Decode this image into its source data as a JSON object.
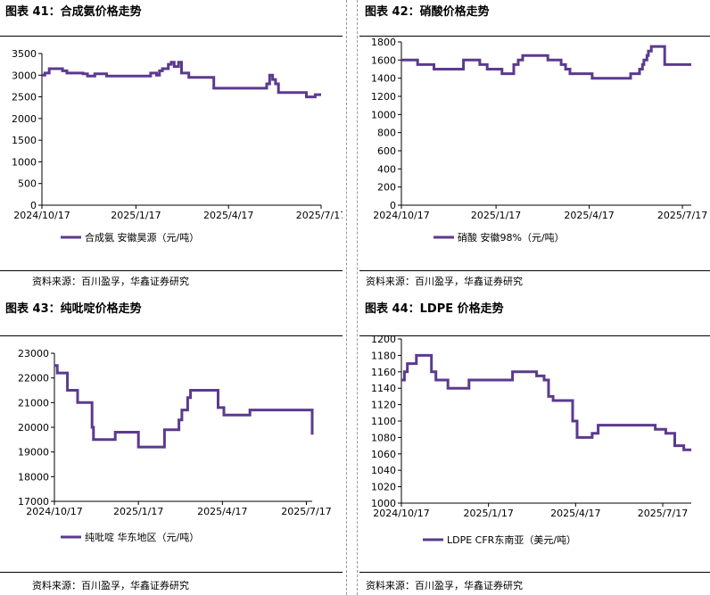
{
  "source_label": "资料来源：百川盈孚，华鑫证券研究",
  "colors": {
    "line": "#5b3a8e",
    "axis": "#000000"
  },
  "panels": [
    {
      "title": "图表 41：合成氨价格走势",
      "chart_data": {
        "type": "line",
        "series": [
          {
            "name": "合成氨 安徽昊源（元/吨）",
            "points": [
              [
                0,
                3000
              ],
              [
                2,
                3000
              ],
              [
                2,
                3050
              ],
              [
                5,
                3050
              ],
              [
                5,
                3150
              ],
              [
                14,
                3150
              ],
              [
                14,
                3100
              ],
              [
                17,
                3100
              ],
              [
                17,
                3050
              ],
              [
                28,
                3050
              ],
              [
                28,
                3030
              ],
              [
                31,
                3030
              ],
              [
                31,
                2980
              ],
              [
                36,
                2980
              ],
              [
                36,
                3030
              ],
              [
                44,
                3030
              ],
              [
                44,
                2980
              ],
              [
                74,
                2980
              ],
              [
                74,
                3050
              ],
              [
                78,
                3050
              ],
              [
                78,
                3000
              ],
              [
                80,
                3000
              ],
              [
                80,
                3100
              ],
              [
                82,
                3100
              ],
              [
                82,
                3150
              ],
              [
                86,
                3150
              ],
              [
                86,
                3250
              ],
              [
                88,
                3250
              ],
              [
                88,
                3300
              ],
              [
                90,
                3300
              ],
              [
                90,
                3200
              ],
              [
                93,
                3200
              ],
              [
                93,
                3300
              ],
              [
                95,
                3300
              ],
              [
                95,
                3050
              ],
              [
                100,
                3050
              ],
              [
                100,
                2950
              ],
              [
                117,
                2950
              ],
              [
                117,
                2700
              ],
              [
                153,
                2700
              ],
              [
                153,
                2800
              ],
              [
                155,
                2800
              ],
              [
                155,
                3000
              ],
              [
                157,
                3000
              ],
              [
                157,
                2900
              ],
              [
                159,
                2900
              ],
              [
                159,
                2800
              ],
              [
                161,
                2800
              ],
              [
                161,
                2600
              ],
              [
                180,
                2600
              ],
              [
                180,
                2500
              ],
              [
                186,
                2500
              ],
              [
                186,
                2550
              ],
              [
                190,
                2550
              ]
            ]
          }
        ],
        "x_ticks": [
          "2024/10/17",
          "2025/1/17",
          "2025/4/17",
          "2025/7/17"
        ],
        "y_ticks": [
          0,
          500,
          1000,
          1500,
          2000,
          2500,
          3000,
          3500
        ],
        "ylim": [
          0,
          3500
        ]
      }
    },
    {
      "title": "图表 42：硝酸价格走势",
      "chart_data": {
        "type": "line",
        "series": [
          {
            "name": "硝酸 安徽98%（元/吨）",
            "points": [
              [
                0,
                1600
              ],
              [
                11,
                1600
              ],
              [
                11,
                1550
              ],
              [
                22,
                1550
              ],
              [
                22,
                1500
              ],
              [
                42,
                1500
              ],
              [
                42,
                1600
              ],
              [
                53,
                1600
              ],
              [
                53,
                1550
              ],
              [
                58,
                1550
              ],
              [
                58,
                1500
              ],
              [
                68,
                1500
              ],
              [
                68,
                1450
              ],
              [
                76,
                1450
              ],
              [
                76,
                1550
              ],
              [
                79,
                1550
              ],
              [
                79,
                1600
              ],
              [
                82,
                1600
              ],
              [
                82,
                1650
              ],
              [
                99,
                1650
              ],
              [
                99,
                1600
              ],
              [
                108,
                1600
              ],
              [
                108,
                1550
              ],
              [
                111,
                1550
              ],
              [
                111,
                1500
              ],
              [
                114,
                1500
              ],
              [
                114,
                1450
              ],
              [
                129,
                1450
              ],
              [
                129,
                1400
              ],
              [
                155,
                1400
              ],
              [
                155,
                1450
              ],
              [
                161,
                1450
              ],
              [
                161,
                1500
              ],
              [
                163,
                1500
              ],
              [
                163,
                1550
              ],
              [
                164,
                1550
              ],
              [
                164,
                1600
              ],
              [
                166,
                1600
              ],
              [
                166,
                1650
              ],
              [
                167,
                1650
              ],
              [
                167,
                1700
              ],
              [
                169,
                1700
              ],
              [
                169,
                1750
              ],
              [
                178,
                1750
              ],
              [
                178,
                1550
              ],
              [
                196,
                1550
              ]
            ]
          }
        ],
        "x_ticks": [
          "2024/10/17",
          "2025/1/17",
          "2025/4/17",
          "2025/7/17"
        ],
        "y_ticks": [
          0,
          200,
          400,
          600,
          800,
          1000,
          1200,
          1400,
          1600,
          1800
        ],
        "ylim": [
          0,
          1800
        ]
      }
    },
    {
      "title": "图表 43：纯吡啶价格走势",
      "chart_data": {
        "type": "line",
        "series": [
          {
            "name": "纯吡啶 华东地区（元/吨）",
            "points": [
              [
                0,
                22500
              ],
              [
                2,
                22500
              ],
              [
                2,
                22200
              ],
              [
                9,
                22200
              ],
              [
                9,
                21500
              ],
              [
                16,
                21500
              ],
              [
                16,
                21000
              ],
              [
                26,
                21000
              ],
              [
                26,
                20000
              ],
              [
                27,
                20000
              ],
              [
                27,
                19500
              ],
              [
                42,
                19500
              ],
              [
                42,
                19800
              ],
              [
                58,
                19800
              ],
              [
                58,
                19200
              ],
              [
                76,
                19200
              ],
              [
                76,
                19900
              ],
              [
                86,
                19900
              ],
              [
                86,
                20300
              ],
              [
                88,
                20300
              ],
              [
                88,
                20700
              ],
              [
                92,
                20700
              ],
              [
                92,
                21200
              ],
              [
                94,
                21200
              ],
              [
                94,
                21500
              ],
              [
                113,
                21500
              ],
              [
                113,
                20800
              ],
              [
                117,
                20800
              ],
              [
                117,
                20500
              ],
              [
                135,
                20500
              ],
              [
                135,
                20700
              ],
              [
                178,
                20700
              ],
              [
                178,
                19700
              ]
            ]
          }
        ],
        "x_ticks": [
          "2024/10/17",
          "2025/1/17",
          "2025/4/17",
          "2025/7/17"
        ],
        "y_ticks": [
          17000,
          18000,
          19000,
          20000,
          21000,
          22000,
          23000
        ],
        "ylim": [
          17000,
          23000
        ]
      }
    },
    {
      "title": "图表 44：LDPE 价格走势",
      "chart_data": {
        "type": "line",
        "series": [
          {
            "name": "LDPE CFR东南亚（美元/吨）",
            "points": [
              [
                0,
                1150
              ],
              [
                2,
                1150
              ],
              [
                2,
                1160
              ],
              [
                4,
                1160
              ],
              [
                4,
                1170
              ],
              [
                10,
                1170
              ],
              [
                10,
                1180
              ],
              [
                20,
                1180
              ],
              [
                20,
                1160
              ],
              [
                23,
                1160
              ],
              [
                23,
                1150
              ],
              [
                31,
                1150
              ],
              [
                31,
                1140
              ],
              [
                45,
                1140
              ],
              [
                45,
                1150
              ],
              [
                74,
                1150
              ],
              [
                74,
                1160
              ],
              [
                90,
                1160
              ],
              [
                90,
                1155
              ],
              [
                95,
                1155
              ],
              [
                95,
                1150
              ],
              [
                98,
                1150
              ],
              [
                98,
                1130
              ],
              [
                101,
                1130
              ],
              [
                101,
                1125
              ],
              [
                114,
                1125
              ],
              [
                114,
                1100
              ],
              [
                117,
                1100
              ],
              [
                117,
                1080
              ],
              [
                127,
                1080
              ],
              [
                127,
                1085
              ],
              [
                131,
                1085
              ],
              [
                131,
                1095
              ],
              [
                169,
                1095
              ],
              [
                169,
                1090
              ],
              [
                176,
                1090
              ],
              [
                176,
                1085
              ],
              [
                182,
                1085
              ],
              [
                182,
                1070
              ],
              [
                188,
                1070
              ],
              [
                188,
                1065
              ],
              [
                193,
                1065
              ]
            ]
          }
        ],
        "x_ticks": [
          "2024/10/17",
          "2025/1/17",
          "2025/4/17",
          "2025/7/17"
        ],
        "y_ticks": [
          1000,
          1020,
          1040,
          1060,
          1080,
          1100,
          1120,
          1140,
          1160,
          1180,
          1200
        ],
        "ylim": [
          1000,
          1200
        ]
      }
    }
  ]
}
